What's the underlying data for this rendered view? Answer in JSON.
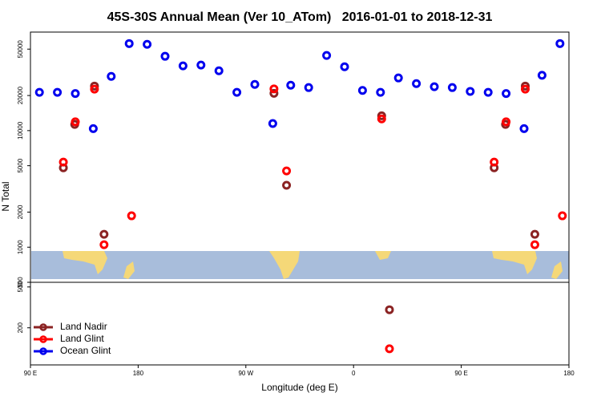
{
  "chart_data": [
    {
      "type": "scatter",
      "title": "45S-30S Annual Mean (Ver 10_ATom)   2016-01-01 to 2018-12-31",
      "ylabel": "N Total",
      "xlim": [
        90,
        540
      ],
      "ylim": [
        500,
        70000
      ],
      "log_y": true,
      "yticks": [
        500,
        1000,
        2000,
        5000,
        10000,
        20000,
        50000
      ],
      "series": [
        {
          "color": "#8b2323",
          "x": [
            117.5,
            127,
            143.5,
            151.5,
            293.5,
            304,
            383.5,
            477.5,
            487,
            503.5,
            511.5
          ],
          "values": [
            4800,
            11300,
            24100,
            1290,
            20900,
            3400,
            13400,
            4800,
            11300,
            24100,
            1290
          ]
        },
        {
          "color": "#ff0000",
          "x": [
            117.5,
            127.5,
            143.5,
            151.5,
            174.5,
            293.5,
            304,
            383.5,
            477.5,
            487.5,
            503.5,
            511.5,
            534.5
          ],
          "values": [
            5370,
            11900,
            22700,
            1050,
            1860,
            22800,
            4510,
            12600,
            5370,
            11900,
            22700,
            1050,
            1860
          ]
        },
        {
          "color": "#0000ee",
          "x": [
            97.5,
            112.5,
            127.5,
            142.5,
            157.5,
            172.5,
            187.5,
            202.5,
            217.5,
            232.5,
            247.5,
            262.5,
            277.5,
            292.5,
            307.5,
            322.5,
            337.5,
            352.5,
            367.5,
            382.5,
            397.5,
            412.5,
            427.5,
            442.5,
            457.5,
            472.5,
            487.5,
            502.5,
            517.5,
            532.5
          ],
          "values": [
            21300,
            21300,
            20800,
            10400,
            29200,
            55800,
            55000,
            43400,
            35900,
            36500,
            32600,
            21300,
            24900,
            11500,
            24500,
            23400,
            44100,
            35300,
            22100,
            21300,
            28300,
            25300,
            23800,
            23400,
            21700,
            21300,
            20800,
            10400,
            29800,
            55800
          ]
        }
      ]
    },
    {
      "type": "scatter",
      "xlabel": "Longitude (deg E)",
      "xlim": [
        90,
        540
      ],
      "ylim": [
        87,
        555
      ],
      "log_y": true,
      "xticks": [
        {
          "value": 90,
          "label": "90 E"
        },
        {
          "value": 180,
          "label": "180"
        },
        {
          "value": 270,
          "label": "90 W"
        },
        {
          "value": 360,
          "label": "0"
        },
        {
          "value": 450,
          "label": "90 E"
        },
        {
          "value": 540,
          "label": "180"
        }
      ],
      "yticks": [
        200,
        500
      ],
      "legend": "left",
      "series": [
        {
          "name": "Land Nadir",
          "color": "#8b2323",
          "x": [
            390
          ],
          "values": [
            300
          ]
        },
        {
          "name": "Land Glint",
          "color": "#ff0000",
          "x": [
            390
          ],
          "values": [
            125
          ]
        },
        {
          "name": "Ocean Glint",
          "color": "#0000ee",
          "x": [],
          "values": []
        }
      ]
    }
  ]
}
